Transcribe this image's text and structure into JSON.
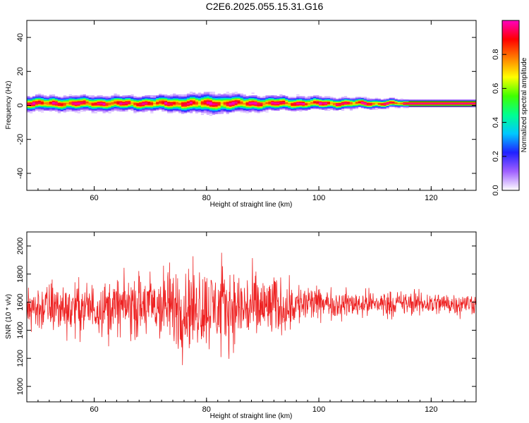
{
  "title": "C2E6.2025.055.15.31.G16",
  "chart_data": [
    {
      "type": "heatmap",
      "xlabel": "Height of straight line (km)",
      "ylabel": "Frequency (Hz)",
      "xlim": [
        48,
        128
      ],
      "ylim": [
        -50,
        50
      ],
      "xticks": [
        60,
        80,
        100,
        120
      ],
      "yticks": [
        -40,
        -20,
        0,
        20,
        40
      ],
      "xtick_labels": [
        "60",
        "80",
        "100",
        "120"
      ],
      "ytick_labels": [
        "-40",
        "-20",
        "0",
        "20",
        "40"
      ],
      "band_center_hz": 1,
      "band_halfwidth_hz": [
        [
          48,
          3
        ],
        [
          60,
          3
        ],
        [
          70,
          3
        ],
        [
          80,
          4
        ],
        [
          90,
          3
        ],
        [
          100,
          2.5
        ],
        [
          110,
          2
        ],
        [
          116,
          1.5
        ],
        [
          128,
          1.5
        ]
      ],
      "colorbar": {
        "label": "Normalized spectral amplitude",
        "range": [
          0,
          1
        ],
        "ticks": [
          0,
          0.2,
          0.4,
          0.6,
          0.8
        ],
        "tick_labels": [
          "0.0",
          "0.2",
          "0.4",
          "0.6",
          "0.8"
        ],
        "stops": [
          "#ffffff",
          "#a060ff",
          "#2020ff",
          "#00c8ff",
          "#00ff90",
          "#40ff00",
          "#ffff00",
          "#ff8000",
          "#ff0000",
          "#ff00c0"
        ]
      }
    },
    {
      "type": "line",
      "xlabel": "Height of straight line (km)",
      "ylabel": "SNR (10 * v/v)",
      "xlim": [
        48,
        128
      ],
      "ylim": [
        890,
        2100
      ],
      "xticks": [
        60,
        80,
        100,
        120
      ],
      "yticks": [
        1000,
        1200,
        1400,
        1600,
        1800,
        2000
      ],
      "xtick_labels": [
        "60",
        "80",
        "100",
        "120"
      ],
      "ytick_labels": [
        "1000",
        "1200",
        "1400",
        "1600",
        "1800",
        "2000"
      ],
      "color": "#ee2222",
      "envelope": {
        "x": [
          48,
          55,
          60,
          65,
          70,
          75,
          80,
          85,
          90,
          95,
          98,
          100,
          105,
          110,
          115,
          120,
          125,
          128
        ],
        "mean": [
          1560,
          1560,
          1560,
          1570,
          1570,
          1560,
          1560,
          1560,
          1560,
          1580,
          1590,
          1590,
          1590,
          1590,
          1590,
          1590,
          1590,
          1590
        ],
        "amplitude": [
          170,
          200,
          190,
          210,
          260,
          320,
          300,
          280,
          260,
          180,
          150,
          110,
          100,
          100,
          90,
          90,
          80,
          80
        ]
      }
    }
  ]
}
